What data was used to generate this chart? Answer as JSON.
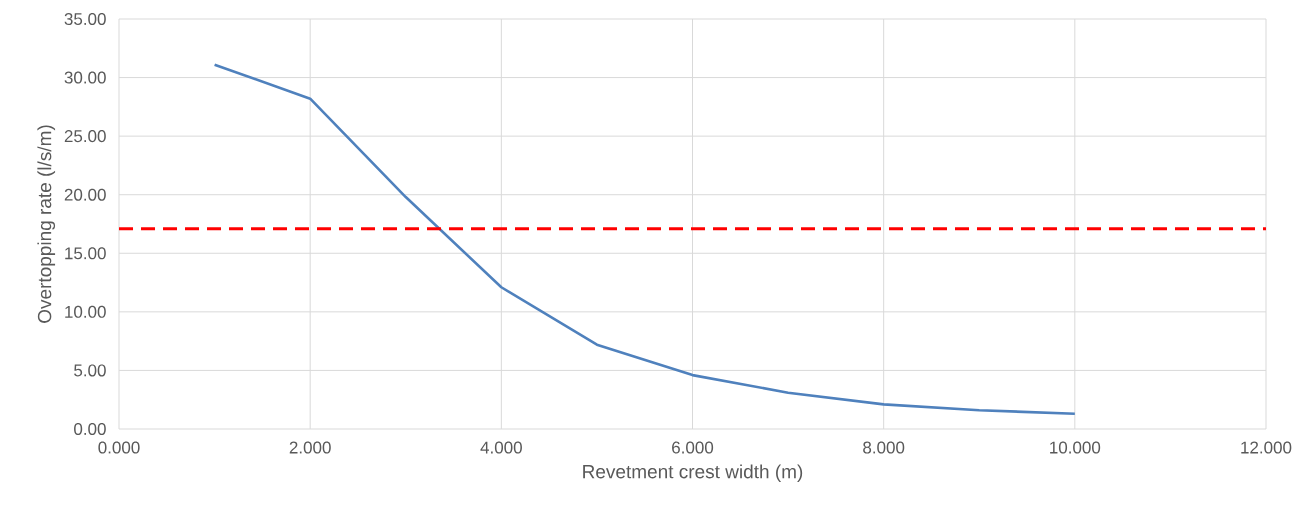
{
  "chart_data": {
    "type": "line",
    "xlabel": "Revetment crest width (m)",
    "ylabel": "Overtopping rate (l/s/m)",
    "x": [
      1,
      2,
      3,
      4,
      5,
      6,
      7,
      8,
      9,
      10
    ],
    "series": [
      {
        "color": "#4f81bd",
        "values": [
          31.1,
          28.2,
          19.8,
          12.1,
          7.2,
          4.6,
          3.1,
          2.1,
          1.6,
          1.3
        ]
      }
    ],
    "xlim": [
      0,
      12
    ],
    "xticks": [
      {
        "value": 0,
        "label": "0.000"
      },
      {
        "value": 2,
        "label": "2.000"
      },
      {
        "value": 4,
        "label": "4.000"
      },
      {
        "value": 6,
        "label": "6.000"
      },
      {
        "value": 8,
        "label": "8.000"
      },
      {
        "value": 10,
        "label": "10.000"
      },
      {
        "value": 12,
        "label": "12.000"
      }
    ],
    "ylim": [
      0,
      35
    ],
    "yticks": [
      {
        "value": 0,
        "label": "0.00"
      },
      {
        "value": 5,
        "label": "5.00"
      },
      {
        "value": 10,
        "label": "10.00"
      },
      {
        "value": 15,
        "label": "15.00"
      },
      {
        "value": 20,
        "label": "20.00"
      },
      {
        "value": 25,
        "label": "25.00"
      },
      {
        "value": 30,
        "label": "30.00"
      },
      {
        "value": 35,
        "label": "35.00"
      }
    ],
    "ref_lines": [
      {
        "axis": "y",
        "value": 17.1,
        "color": "#ff0000",
        "line_style": "dashed"
      }
    ],
    "grid": true,
    "marker": "none",
    "line_style": "solid"
  }
}
